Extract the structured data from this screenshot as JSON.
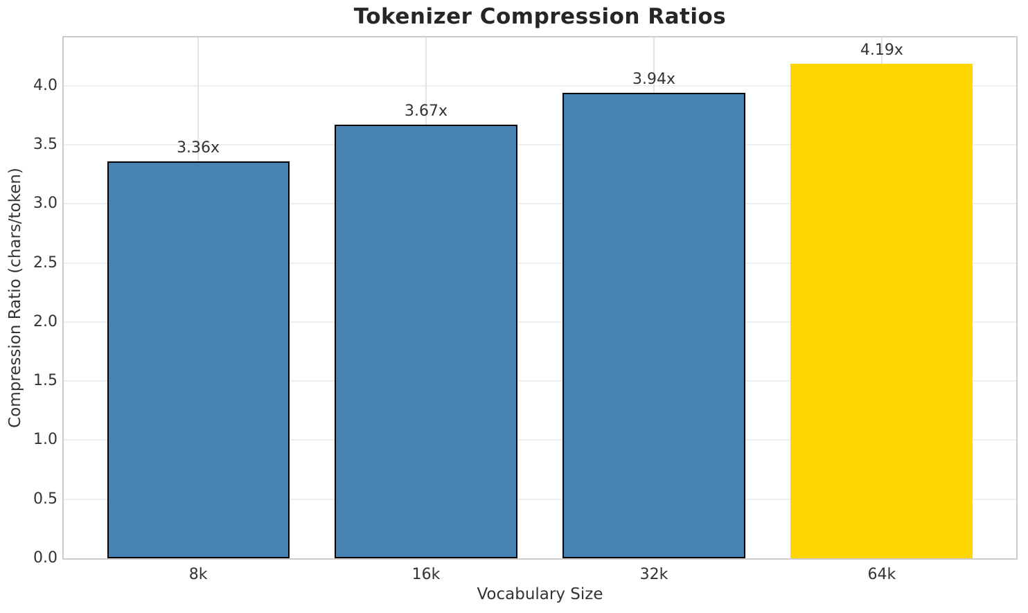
{
  "chart_data": {
    "type": "bar",
    "title": "Tokenizer Compression Ratios",
    "xlabel": "Vocabulary Size",
    "ylabel": "Compression Ratio (chars/token)",
    "categories": [
      "8k",
      "16k",
      "32k",
      "64k"
    ],
    "values": [
      3.36,
      3.67,
      3.94,
      4.19
    ],
    "bar_labels": [
      "3.36x",
      "3.67x",
      "3.94x",
      "4.19x"
    ],
    "bar_colors": [
      "#4682B4",
      "#4682B4",
      "#4682B4",
      "#FFD700"
    ],
    "bar_edge_colors": [
      "#000000",
      "#000000",
      "#000000",
      "none"
    ],
    "highlight_category": "64k",
    "yticks": [
      0.0,
      0.5,
      1.0,
      1.5,
      2.0,
      2.5,
      3.0,
      3.5,
      4.0
    ],
    "ytick_labels": [
      "0.0",
      "0.5",
      "1.0",
      "1.5",
      "2.0",
      "2.5",
      "3.0",
      "3.5",
      "4.0"
    ],
    "ylim": [
      0,
      4.41
    ],
    "grid": true,
    "legend_position": "none",
    "colors": {
      "accent_blue": "#4682B4",
      "accent_gold": "#FFD700",
      "grid_h": "#efefef",
      "grid_v": "#e4e4e4",
      "spine": "#cccccc",
      "title_text": "#262626",
      "tick_text": "#333333"
    }
  }
}
